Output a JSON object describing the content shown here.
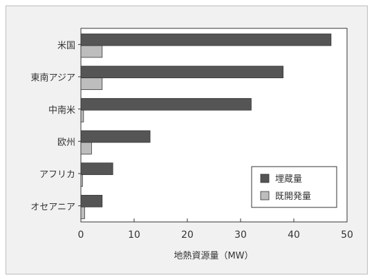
{
  "chart_data": {
    "type": "bar",
    "orientation": "horizontal",
    "categories": [
      "米国",
      "東南アジア",
      "中南米",
      "欧州",
      "アフリカ",
      "オセアニア"
    ],
    "series": [
      {
        "name": "埋蔵量",
        "values": [
          47,
          38,
          32,
          13,
          6,
          4
        ],
        "color": "#555555"
      },
      {
        "name": "既開発量",
        "values": [
          4,
          4,
          0.5,
          2,
          0.3,
          0.7
        ],
        "color": "#bdbdbd"
      }
    ],
    "xlabel": "地熱資源量（MW）",
    "xlim": [
      0,
      50
    ],
    "xticks": [
      0,
      10,
      20,
      30,
      40,
      50
    ],
    "grid": false,
    "legend_position": "bottom-right"
  },
  "colors": {
    "background": "#f1f1f1",
    "plot_background": "#ffffff",
    "border": "#bdbdbd"
  }
}
